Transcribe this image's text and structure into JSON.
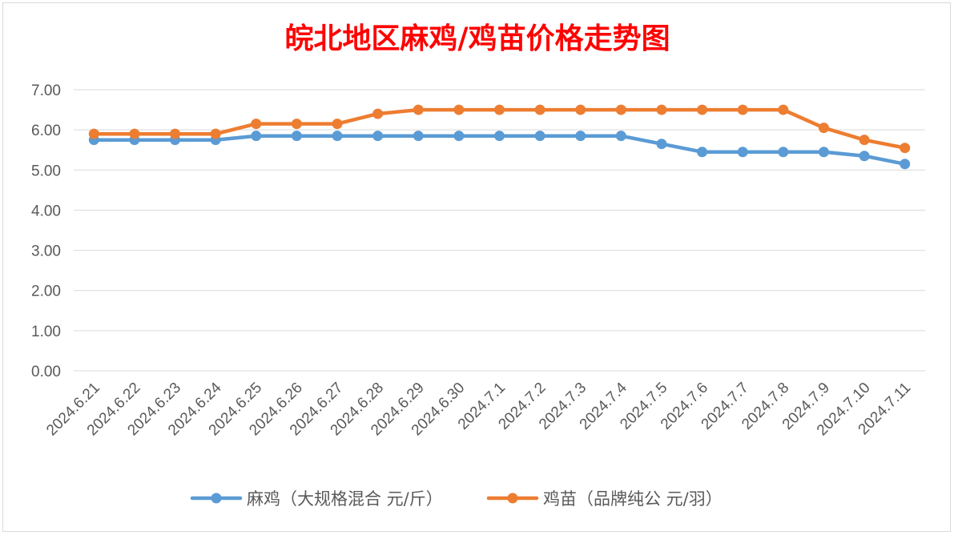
{
  "chart_data": {
    "type": "line",
    "title": "皖北地区麻鸡/鸡苗价格走势图",
    "categories": [
      "2024.6.21",
      "2024.6.22",
      "2024.6.23",
      "2024.6.24",
      "2024.6.25",
      "2024.6.26",
      "2024.6.27",
      "2024.6.28",
      "2024.6.29",
      "2024.6.30",
      "2024.7.1",
      "2024.7.2",
      "2024.7.3",
      "2024.7.4",
      "2024.7.5",
      "2024.7.6",
      "2024.7.7",
      "2024.7.8",
      "2024.7.9",
      "2024.7.10",
      "2024.7.11"
    ],
    "series": [
      {
        "name": "麻鸡（大规格混合 元/斤）",
        "color": "#5b9bd5",
        "values": [
          5.75,
          5.75,
          5.75,
          5.75,
          5.85,
          5.85,
          5.85,
          5.85,
          5.85,
          5.85,
          5.85,
          5.85,
          5.85,
          5.85,
          5.65,
          5.45,
          5.45,
          5.45,
          5.45,
          5.35,
          5.15
        ]
      },
      {
        "name": "鸡苗（品牌纯公 元/羽）",
        "color": "#ed7d31",
        "values": [
          5.9,
          5.9,
          5.9,
          5.9,
          6.15,
          6.15,
          6.15,
          6.4,
          6.5,
          6.5,
          6.5,
          6.5,
          6.5,
          6.5,
          6.5,
          6.5,
          6.5,
          6.5,
          6.05,
          5.75,
          5.55
        ]
      }
    ],
    "yticks": [
      "0.00",
      "1.00",
      "2.00",
      "3.00",
      "4.00",
      "5.00",
      "6.00",
      "7.00"
    ],
    "ylim": [
      0,
      7
    ],
    "grid": true,
    "legend": "bottom",
    "title_color": "#ff0000"
  }
}
